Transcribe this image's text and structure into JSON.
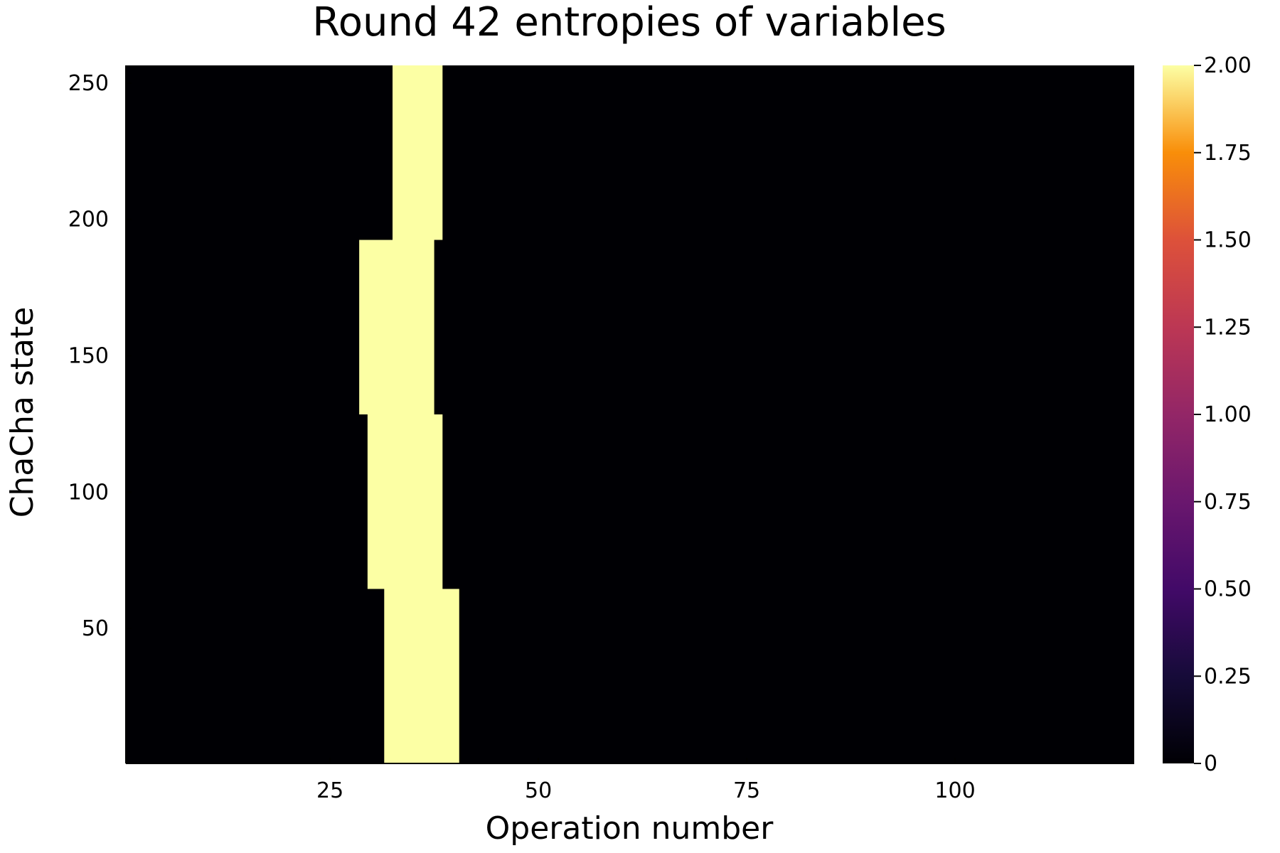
{
  "chart_data": {
    "type": "heatmap",
    "title": "Round 42 entropies of variables",
    "xlabel": "Operation number",
    "ylabel": "ChaCha state",
    "xlim": [
      0.5,
      121.5
    ],
    "ylim": [
      0.5,
      256.5
    ],
    "x_ticks": [
      25,
      50,
      75,
      100
    ],
    "y_ticks": [
      50,
      100,
      150,
      200,
      250
    ],
    "colorbar": {
      "colormap": "inferno",
      "range": [
        0,
        2
      ],
      "ticks": [
        "0",
        "0.25",
        "0.50",
        "0.75",
        "1.00",
        "1.25",
        "1.50",
        "1.75",
        "2.00"
      ]
    },
    "background_value": 0,
    "cells": [
      {
        "x_start": 32,
        "x_end": 40,
        "y_start": 1,
        "y_end": 64,
        "value": 2
      },
      {
        "x_start": 30,
        "x_end": 38,
        "y_start": 65,
        "y_end": 128,
        "value": 2
      },
      {
        "x_start": 29,
        "x_end": 37,
        "y_start": 129,
        "y_end": 192,
        "value": 2
      },
      {
        "x_start": 33,
        "x_end": 38,
        "y_start": 193,
        "y_end": 256,
        "value": 2
      }
    ],
    "grid": false,
    "legend": "none"
  }
}
